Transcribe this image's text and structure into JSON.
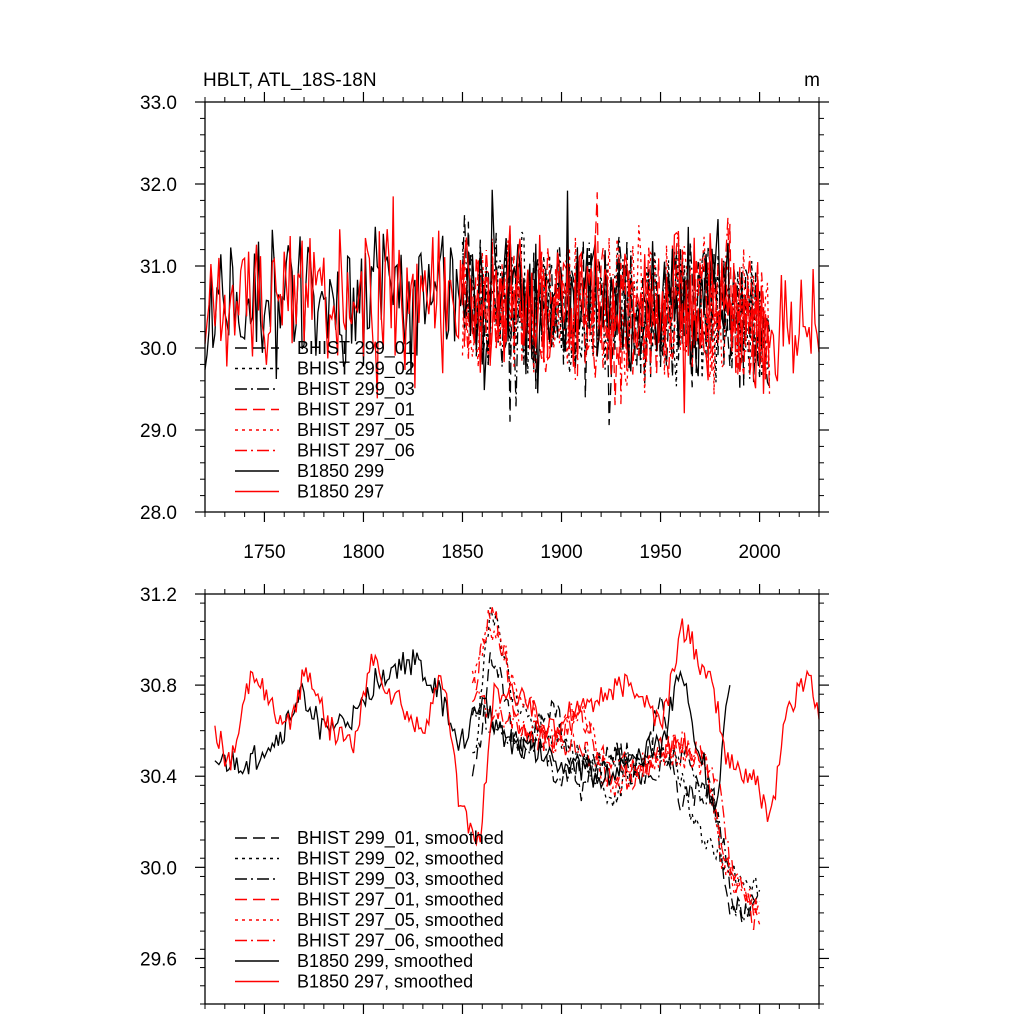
{
  "chart_data": [
    {
      "type": "line",
      "title": "HBLT, ATL_18S-18N",
      "units": "m",
      "xlim": [
        1720,
        2030
      ],
      "ylim": [
        28.0,
        33.0
      ],
      "x_ticks": [
        1750,
        1800,
        1850,
        1900,
        1950,
        2000
      ],
      "y_ticks": [
        28.0,
        29.0,
        30.0,
        31.0,
        32.0,
        33.0
      ],
      "x_tick_labels": [
        "1750",
        "1800",
        "1850",
        "1900",
        "1950",
        "2000"
      ],
      "y_tick_labels": [
        "28.0",
        "29.0",
        "30.0",
        "31.0",
        "32.0",
        "33.0"
      ],
      "legend_position": "lower-left",
      "series": [
        {
          "name": "BHIST 299_01",
          "color": "#000000",
          "dash": "long-dash",
          "x_range": [
            1850,
            2005
          ],
          "mean": 30.5,
          "amp": 0.55,
          "seed": 11
        },
        {
          "name": "BHIST 299_02",
          "color": "#000000",
          "dash": "dot",
          "x_range": [
            1850,
            2005
          ],
          "mean": 30.5,
          "amp": 0.55,
          "seed": 23
        },
        {
          "name": "BHIST 299_03",
          "color": "#000000",
          "dash": "dash-dot",
          "x_range": [
            1850,
            2005
          ],
          "mean": 30.5,
          "amp": 0.55,
          "seed": 37
        },
        {
          "name": "BHIST 297_01",
          "color": "#ff0000",
          "dash": "long-dash",
          "x_range": [
            1850,
            2005
          ],
          "mean": 30.5,
          "amp": 0.55,
          "seed": 41
        },
        {
          "name": "BHIST 297_05",
          "color": "#ff0000",
          "dash": "dot",
          "x_range": [
            1850,
            2005
          ],
          "mean": 30.5,
          "amp": 0.55,
          "seed": 53
        },
        {
          "name": "BHIST 297_06",
          "color": "#ff0000",
          "dash": "dash-dot",
          "x_range": [
            1850,
            2005
          ],
          "mean": 30.5,
          "amp": 0.55,
          "seed": 67
        },
        {
          "name": "B1850 299",
          "color": "#000000",
          "dash": "solid",
          "x_range": [
            1720,
            1985
          ],
          "mean": 30.6,
          "amp": 0.55,
          "seed": 71
        },
        {
          "name": "B1850 297",
          "color": "#ff0000",
          "dash": "solid",
          "x_range": [
            1720,
            2030
          ],
          "mean": 30.6,
          "amp": 0.55,
          "seed": 83
        }
      ]
    },
    {
      "type": "line",
      "title": "",
      "xlim": [
        1720,
        2030
      ],
      "ylim": [
        29.4,
        31.2
      ],
      "x_ticks": [
        1750,
        1800,
        1850,
        1900,
        1950,
        2000
      ],
      "y_ticks": [
        29.6,
        30.0,
        30.4,
        30.8,
        31.2
      ],
      "y_tick_labels": [
        "29.6",
        "30.0",
        "30.4",
        "30.8",
        "31.2"
      ],
      "legend_position": "lower-left",
      "series": [
        {
          "name": "BHIST 299_01, smoothed",
          "color": "#000000",
          "dash": "long-dash",
          "seed": 111,
          "anchors": [
            [
              1855,
              30.4
            ],
            [
              1865,
              30.9
            ],
            [
              1880,
              30.5
            ],
            [
              1895,
              30.7
            ],
            [
              1910,
              30.35
            ],
            [
              1925,
              30.5
            ],
            [
              1940,
              30.4
            ],
            [
              1950,
              30.7
            ],
            [
              1960,
              30.3
            ],
            [
              1975,
              30.35
            ],
            [
              1985,
              29.8
            ],
            [
              2000,
              29.85
            ]
          ]
        },
        {
          "name": "BHIST 299_02, smoothed",
          "color": "#000000",
          "dash": "dot",
          "seed": 123,
          "anchors": [
            [
              1855,
              30.5
            ],
            [
              1865,
              31.1
            ],
            [
              1878,
              30.7
            ],
            [
              1895,
              30.6
            ],
            [
              1910,
              30.5
            ],
            [
              1925,
              30.3
            ],
            [
              1940,
              30.45
            ],
            [
              1955,
              30.5
            ],
            [
              1970,
              30.15
            ],
            [
              1985,
              30.0
            ],
            [
              2000,
              29.9
            ]
          ]
        },
        {
          "name": "BHIST 299_03, smoothed",
          "color": "#000000",
          "dash": "dash-dot",
          "seed": 137,
          "anchors": [
            [
              1855,
              30.7
            ],
            [
              1870,
              30.6
            ],
            [
              1885,
              30.55
            ],
            [
              1900,
              30.4
            ],
            [
              1915,
              30.45
            ],
            [
              1930,
              30.5
            ],
            [
              1945,
              30.4
            ],
            [
              1960,
              30.5
            ],
            [
              1975,
              30.3
            ],
            [
              1990,
              29.8
            ],
            [
              2000,
              29.85
            ]
          ]
        },
        {
          "name": "BHIST 297_01, smoothed",
          "color": "#ff0000",
          "dash": "long-dash",
          "seed": 141,
          "anchors": [
            [
              1855,
              30.8
            ],
            [
              1865,
              31.1
            ],
            [
              1880,
              30.6
            ],
            [
              1895,
              30.55
            ],
            [
              1910,
              30.65
            ],
            [
              1925,
              30.4
            ],
            [
              1940,
              30.4
            ],
            [
              1955,
              30.55
            ],
            [
              1970,
              30.5
            ],
            [
              1985,
              30.0
            ],
            [
              2000,
              29.75
            ]
          ]
        },
        {
          "name": "BHIST 297_05, smoothed",
          "color": "#ff0000",
          "dash": "dot",
          "seed": 153,
          "anchors": [
            [
              1855,
              30.85
            ],
            [
              1865,
              31.05
            ],
            [
              1880,
              30.75
            ],
            [
              1895,
              30.55
            ],
            [
              1910,
              30.7
            ],
            [
              1925,
              30.35
            ],
            [
              1940,
              30.45
            ],
            [
              1955,
              30.5
            ],
            [
              1970,
              30.45
            ],
            [
              1985,
              29.95
            ],
            [
              2000,
              29.85
            ]
          ]
        },
        {
          "name": "BHIST 297_06, smoothed",
          "color": "#ff0000",
          "dash": "dash-dot",
          "seed": 167,
          "anchors": [
            [
              1855,
              30.75
            ],
            [
              1870,
              30.65
            ],
            [
              1885,
              30.6
            ],
            [
              1900,
              30.55
            ],
            [
              1915,
              30.5
            ],
            [
              1930,
              30.45
            ],
            [
              1945,
              30.45
            ],
            [
              1960,
              30.55
            ],
            [
              1975,
              30.45
            ],
            [
              1990,
              29.9
            ],
            [
              2000,
              29.8
            ]
          ]
        },
        {
          "name": "B1850 299, smoothed",
          "color": "#000000",
          "dash": "solid",
          "seed": 171,
          "anchors": [
            [
              1725,
              30.45
            ],
            [
              1740,
              30.45
            ],
            [
              1755,
              30.55
            ],
            [
              1770,
              30.75
            ],
            [
              1780,
              30.6
            ],
            [
              1795,
              30.65
            ],
            [
              1810,
              30.85
            ],
            [
              1825,
              30.9
            ],
            [
              1835,
              30.8
            ],
            [
              1848,
              30.55
            ],
            [
              1860,
              30.7
            ],
            [
              1875,
              30.55
            ],
            [
              1890,
              30.5
            ],
            [
              1905,
              30.45
            ],
            [
              1920,
              30.4
            ],
            [
              1935,
              30.45
            ],
            [
              1950,
              30.55
            ],
            [
              1960,
              30.85
            ],
            [
              1970,
              30.5
            ],
            [
              1978,
              30.25
            ],
            [
              1985,
              30.8
            ]
          ]
        },
        {
          "name": "B1850 297, smoothed",
          "color": "#ff0000",
          "dash": "solid",
          "seed": 183,
          "anchors": [
            [
              1725,
              30.6
            ],
            [
              1732,
              30.45
            ],
            [
              1745,
              30.85
            ],
            [
              1760,
              30.6
            ],
            [
              1772,
              30.85
            ],
            [
              1785,
              30.6
            ],
            [
              1795,
              30.55
            ],
            [
              1805,
              30.9
            ],
            [
              1815,
              30.75
            ],
            [
              1828,
              30.6
            ],
            [
              1840,
              30.8
            ],
            [
              1850,
              30.25
            ],
            [
              1858,
              30.1
            ],
            [
              1866,
              30.75
            ],
            [
              1880,
              30.75
            ],
            [
              1895,
              30.6
            ],
            [
              1905,
              30.7
            ],
            [
              1920,
              30.75
            ],
            [
              1935,
              30.8
            ],
            [
              1950,
              30.65
            ],
            [
              1962,
              31.05
            ],
            [
              1975,
              30.8
            ],
            [
              1985,
              30.45
            ],
            [
              1995,
              30.4
            ],
            [
              2005,
              30.25
            ],
            [
              2015,
              30.7
            ],
            [
              2025,
              30.85
            ],
            [
              2030,
              30.65
            ]
          ]
        }
      ]
    }
  ]
}
